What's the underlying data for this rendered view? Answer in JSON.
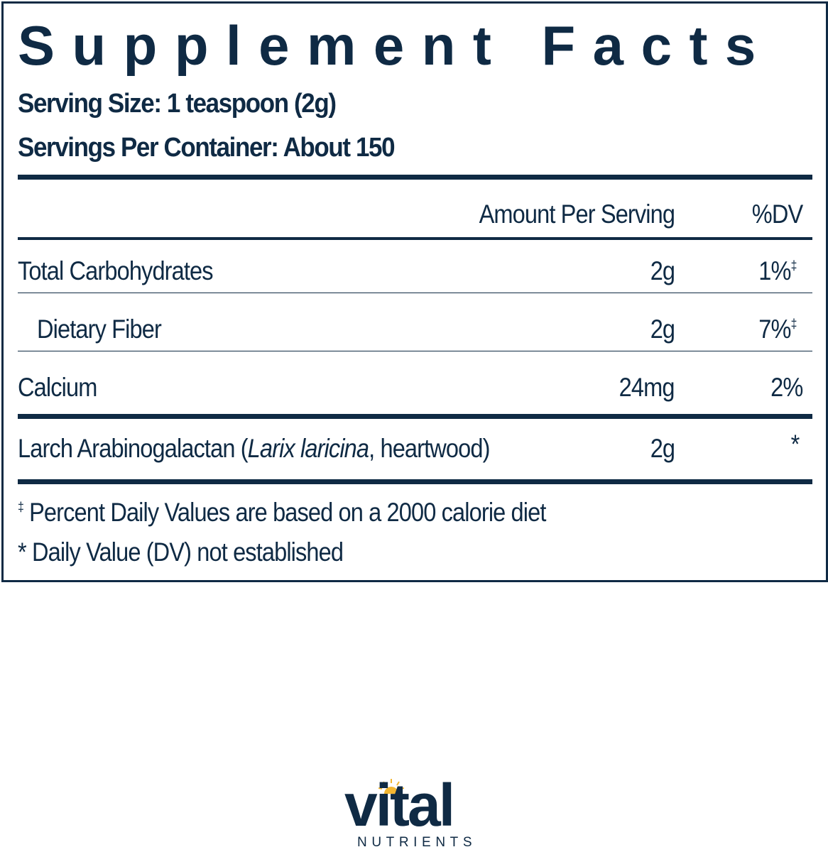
{
  "title": "Supplement Facts",
  "serving_size": "Serving Size: 1 teaspoon (2g)",
  "servings_per_container": "Servings Per Container: About 150",
  "header": {
    "amount": "Amount Per Serving",
    "dv": "%DV"
  },
  "rows": [
    {
      "name": "Total Carbohydrates",
      "amount": "2g",
      "dv": "1%",
      "dv_mark": "‡"
    },
    {
      "name": "Dietary Fiber",
      "amount": "2g",
      "dv": "7%",
      "dv_mark": "‡"
    },
    {
      "name": "Calcium",
      "amount": "24mg",
      "dv": "2%",
      "dv_mark": ""
    },
    {
      "name_pre": "Larch Arabinogalactan (",
      "name_italic": "Larix laricina",
      "name_post": ", heartwood)",
      "amount": "2g",
      "dv": "*"
    }
  ],
  "footnotes": [
    {
      "mark": "‡",
      "text": " Percent Daily Values are based on a 2000 calorie diet"
    },
    {
      "text": "* Daily Value (DV) not established"
    }
  ],
  "logo": {
    "word": "vital",
    "tagline": "NUTRIENTS",
    "brand_color": "#0f2a44",
    "sun_color": "#f2b632"
  }
}
